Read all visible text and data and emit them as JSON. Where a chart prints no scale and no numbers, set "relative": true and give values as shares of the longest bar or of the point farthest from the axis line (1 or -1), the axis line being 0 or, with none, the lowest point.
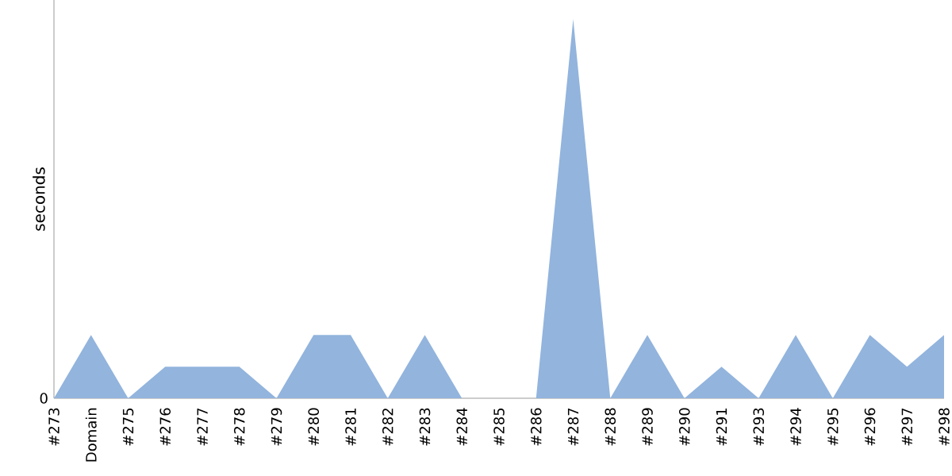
{
  "chart_data": {
    "type": "area",
    "ylabel": "seconds",
    "relative": true,
    "color": "#92b4dd",
    "categories": [
      "#273",
      "Domain",
      "#275",
      "#276",
      "#277",
      "#278",
      "#279",
      "#280",
      "#281",
      "#282",
      "#283",
      "#284",
      "#285",
      "#286",
      "#287",
      "#288",
      "#289",
      "#290",
      "#291",
      "#293",
      "#294",
      "#295",
      "#296",
      "#297",
      "#298"
    ],
    "values": [
      0,
      0.167,
      0,
      0.083,
      0.083,
      0.083,
      0,
      0.167,
      0.167,
      0,
      0.167,
      0,
      0,
      0,
      1,
      0,
      0.167,
      0,
      0.083,
      0,
      0.167,
      0,
      0.167,
      0.083,
      0.167
    ],
    "annotations": [
      "0"
    ]
  }
}
